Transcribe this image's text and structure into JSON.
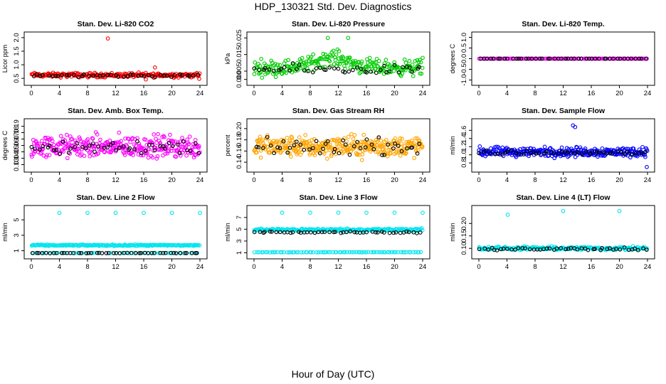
{
  "title": "HDP_130321  Std. Dev. Diagnostics",
  "xlabel": "Hour of Day (UTC)",
  "colors": {
    "black": "#000000",
    "red": "#ff0000",
    "green": "#00cc00",
    "magenta": "#ff00ff",
    "orange": "#ffa500",
    "blue": "#0000ff",
    "cyan": "#00e5ee"
  },
  "chart_data": [
    {
      "type": "scatter",
      "title": "Stan. Dev. Li-820 CO2",
      "ylabel": "Licor ppm",
      "xlim": [
        0,
        24
      ],
      "ylim": [
        0.4,
        2.05
      ],
      "xticks": [
        0,
        4,
        8,
        12,
        16,
        20,
        24
      ],
      "xtick_labels": [
        "0",
        "4",
        "8",
        "12",
        "16",
        "20",
        "24"
      ],
      "yticks": [
        0.5,
        1.0,
        1.5,
        2.0
      ],
      "ytick_labels": [
        "0.5",
        "1.0",
        "1.5",
        "2.0"
      ],
      "series": [
        {
          "color": "red",
          "center": 0.62,
          "spread": 0.07,
          "count": 230,
          "outliers": [
            [
              10.9,
              1.97
            ],
            [
              17.6,
              0.9
            ],
            [
              16.3,
              0.46
            ],
            [
              23.9,
              0.48
            ]
          ]
        },
        {
          "color": "black",
          "center": 0.6,
          "spread": 0.05,
          "count": 45
        }
      ]
    },
    {
      "type": "scatter",
      "title": "Stan. Dev. Li-820 Pressure",
      "ylabel": "kPa",
      "xlim": [
        0,
        24
      ],
      "ylim": [
        -0.001,
        0.026
      ],
      "xticks": [
        0,
        4,
        8,
        12,
        16,
        20,
        24
      ],
      "xtick_labels": [
        "0",
        "4",
        "8",
        "12",
        "16",
        "20",
        "24"
      ],
      "yticks": [
        0.0,
        0.005,
        0.015,
        0.025
      ],
      "ytick_labels": [
        "0.000",
        "0.005",
        "0.015",
        "0.025"
      ],
      "series": [
        {
          "color": "green",
          "center": 0.007,
          "spread": 0.004,
          "count": 260,
          "hump": [
            11,
            0.006
          ],
          "outliers": [
            [
              10.5,
              0.025
            ],
            [
              13.4,
              0.025
            ],
            [
              24,
              0.013
            ]
          ]
        },
        {
          "color": "black",
          "center": 0.006,
          "spread": 0.0025,
          "count": 45
        }
      ]
    },
    {
      "type": "scatter",
      "title": "Stan. Dev. Li-820 Temp.",
      "ylabel": "degrees C",
      "xlim": [
        0,
        24
      ],
      "ylim": [
        -1.05,
        1.05
      ],
      "xticks": [
        0,
        4,
        8,
        12,
        16,
        20,
        24
      ],
      "xtick_labels": [
        "0",
        "4",
        "8",
        "12",
        "16",
        "20",
        "24"
      ],
      "yticks": [
        -1.0,
        -0.5,
        0.0,
        0.5,
        1.0
      ],
      "ytick_labels": [
        "-1.0",
        "-0.5",
        "0.0",
        "0.5",
        "1.0"
      ],
      "series": [
        {
          "color": "magenta",
          "center": 0.0,
          "spread": 0.0,
          "count": 120
        },
        {
          "color": "black",
          "center": 0.0,
          "spread": 0.0,
          "count": 48
        }
      ]
    },
    {
      "type": "scatter",
      "title": "Stan. Dev. Amb. Box Temp.",
      "ylabel": "degrees C",
      "xlim": [
        0,
        24
      ],
      "ylim": [
        0.125,
        0.195
      ],
      "xticks": [
        0,
        4,
        8,
        12,
        16,
        20,
        24
      ],
      "xtick_labels": [
        "0",
        "4",
        "8",
        "12",
        "16",
        "20",
        "24"
      ],
      "yticks": [
        0.13,
        0.14,
        0.15,
        0.16,
        0.17,
        0.18,
        0.19
      ],
      "ytick_labels": [
        "0.13",
        "0.14",
        "0.15",
        "0.16",
        "0.17",
        "0.18",
        "0.19"
      ],
      "series": [
        {
          "color": "magenta",
          "center": 0.158,
          "spread": 0.015,
          "count": 320
        },
        {
          "color": "black",
          "center": 0.158,
          "spread": 0.011,
          "count": 48
        }
      ]
    },
    {
      "type": "scatter",
      "title": "Stan. Dev. Gas Stream RH",
      "ylabel": "percent",
      "xlim": [
        0,
        24
      ],
      "ylim": [
        0.13,
        0.21
      ],
      "xticks": [
        0,
        4,
        8,
        12,
        16,
        20,
        24
      ],
      "xtick_labels": [
        "0",
        "4",
        "8",
        "12",
        "16",
        "20",
        "24"
      ],
      "yticks": [
        0.14,
        0.16,
        0.18,
        0.2
      ],
      "ytick_labels": [
        "0.14",
        "0.16",
        "0.18",
        "0.20"
      ],
      "series": [
        {
          "color": "orange",
          "center": 0.168,
          "spread": 0.016,
          "count": 340
        },
        {
          "color": "black",
          "center": 0.168,
          "spread": 0.012,
          "count": 48
        }
      ]
    },
    {
      "type": "scatter",
      "title": "Stan. Dev. Sample Flow",
      "ylabel": "ml/min",
      "xlim": [
        0,
        24
      ],
      "ylim": [
        0.68,
        1.78
      ],
      "xticks": [
        0,
        4,
        8,
        12,
        16,
        20,
        24
      ],
      "xtick_labels": [
        "0",
        "4",
        "8",
        "12",
        "16",
        "20",
        "24"
      ],
      "yticks": [
        0.8,
        1.0,
        1.2,
        1.4,
        1.6
      ],
      "ytick_labels": [
        "0.8",
        "1.0",
        "1.2",
        "1.4",
        "1.6"
      ],
      "series": [
        {
          "color": "blue",
          "center": 1.07,
          "spread": 0.1,
          "count": 300,
          "outliers": [
            [
              13.4,
              1.72
            ],
            [
              13.7,
              1.68
            ],
            [
              23.9,
              0.7
            ]
          ]
        },
        {
          "color": "black",
          "center": 1.05,
          "spread": 0.05,
          "count": 48
        }
      ]
    },
    {
      "type": "scatter",
      "title": "Stan. Dev. Line 2 Flow",
      "ylabel": "ml/min",
      "xlim": [
        0,
        24
      ],
      "ylim": [
        0.5,
        6.3
      ],
      "xticks": [
        0,
        4,
        8,
        12,
        16,
        20,
        24
      ],
      "xtick_labels": [
        "0",
        "4",
        "8",
        "12",
        "16",
        "20",
        "24"
      ],
      "yticks": [
        1,
        3,
        5
      ],
      "ytick_labels": [
        "1",
        "3",
        "5"
      ],
      "series": [
        {
          "color": "cyan",
          "center": 1.7,
          "spread": 0.08,
          "count": 200,
          "outliers": [
            [
              4,
              5.9
            ],
            [
              8,
              5.9
            ],
            [
              12,
              5.9
            ],
            [
              16,
              5.9
            ],
            [
              20,
              5.9
            ],
            [
              24,
              5.9
            ]
          ]
        },
        {
          "color": "cyan",
          "center": 0.7,
          "spread": 0.02,
          "count": 60
        },
        {
          "color": "black",
          "center": 0.7,
          "spread": 0.02,
          "count": 48
        }
      ]
    },
    {
      "type": "scatter",
      "title": "Stan. Dev. Line 3 Flow",
      "ylabel": "ml/min",
      "xlim": [
        0,
        24
      ],
      "ylim": [
        0.7,
        8.3
      ],
      "xticks": [
        0,
        4,
        8,
        12,
        16,
        20,
        24
      ],
      "xtick_labels": [
        "0",
        "4",
        "8",
        "12",
        "16",
        "20",
        "24"
      ],
      "yticks": [
        1,
        3,
        5,
        7
      ],
      "ytick_labels": [
        "1",
        "3",
        "5",
        "7"
      ],
      "series": [
        {
          "color": "cyan",
          "center": 4.9,
          "spread": 0.2,
          "count": 220,
          "outliers": [
            [
              4,
              7.8
            ],
            [
              8,
              7.8
            ],
            [
              12,
              7.8
            ],
            [
              16,
              7.8
            ],
            [
              20,
              7.8
            ],
            [
              24,
              7.8
            ]
          ]
        },
        {
          "color": "cyan",
          "center": 1.1,
          "spread": 0.02,
          "count": 80
        },
        {
          "color": "black",
          "center": 4.5,
          "spread": 0.12,
          "count": 48
        }
      ]
    },
    {
      "type": "scatter",
      "title": "Stan. Dev. Line 4 (LT) Flow",
      "ylabel": "ml/min",
      "xlim": [
        0,
        24
      ],
      "ylim": [
        0.075,
        0.255
      ],
      "xticks": [
        0,
        4,
        8,
        12,
        16,
        20,
        24
      ],
      "xtick_labels": [
        "0",
        "4",
        "8",
        "12",
        "16",
        "20",
        "24"
      ],
      "yticks": [
        0.1,
        0.15,
        0.2
      ],
      "ytick_labels": [
        "0.10",
        "0.15",
        "0.20"
      ],
      "series": [
        {
          "color": "cyan",
          "center": 0.1,
          "spread": 0.006,
          "count": 200,
          "outliers": [
            [
              4.1,
              0.235
            ],
            [
              12.0,
              0.25
            ],
            [
              20.0,
              0.25
            ]
          ]
        },
        {
          "color": "black",
          "center": 0.097,
          "spread": 0.005,
          "count": 48
        }
      ]
    }
  ]
}
